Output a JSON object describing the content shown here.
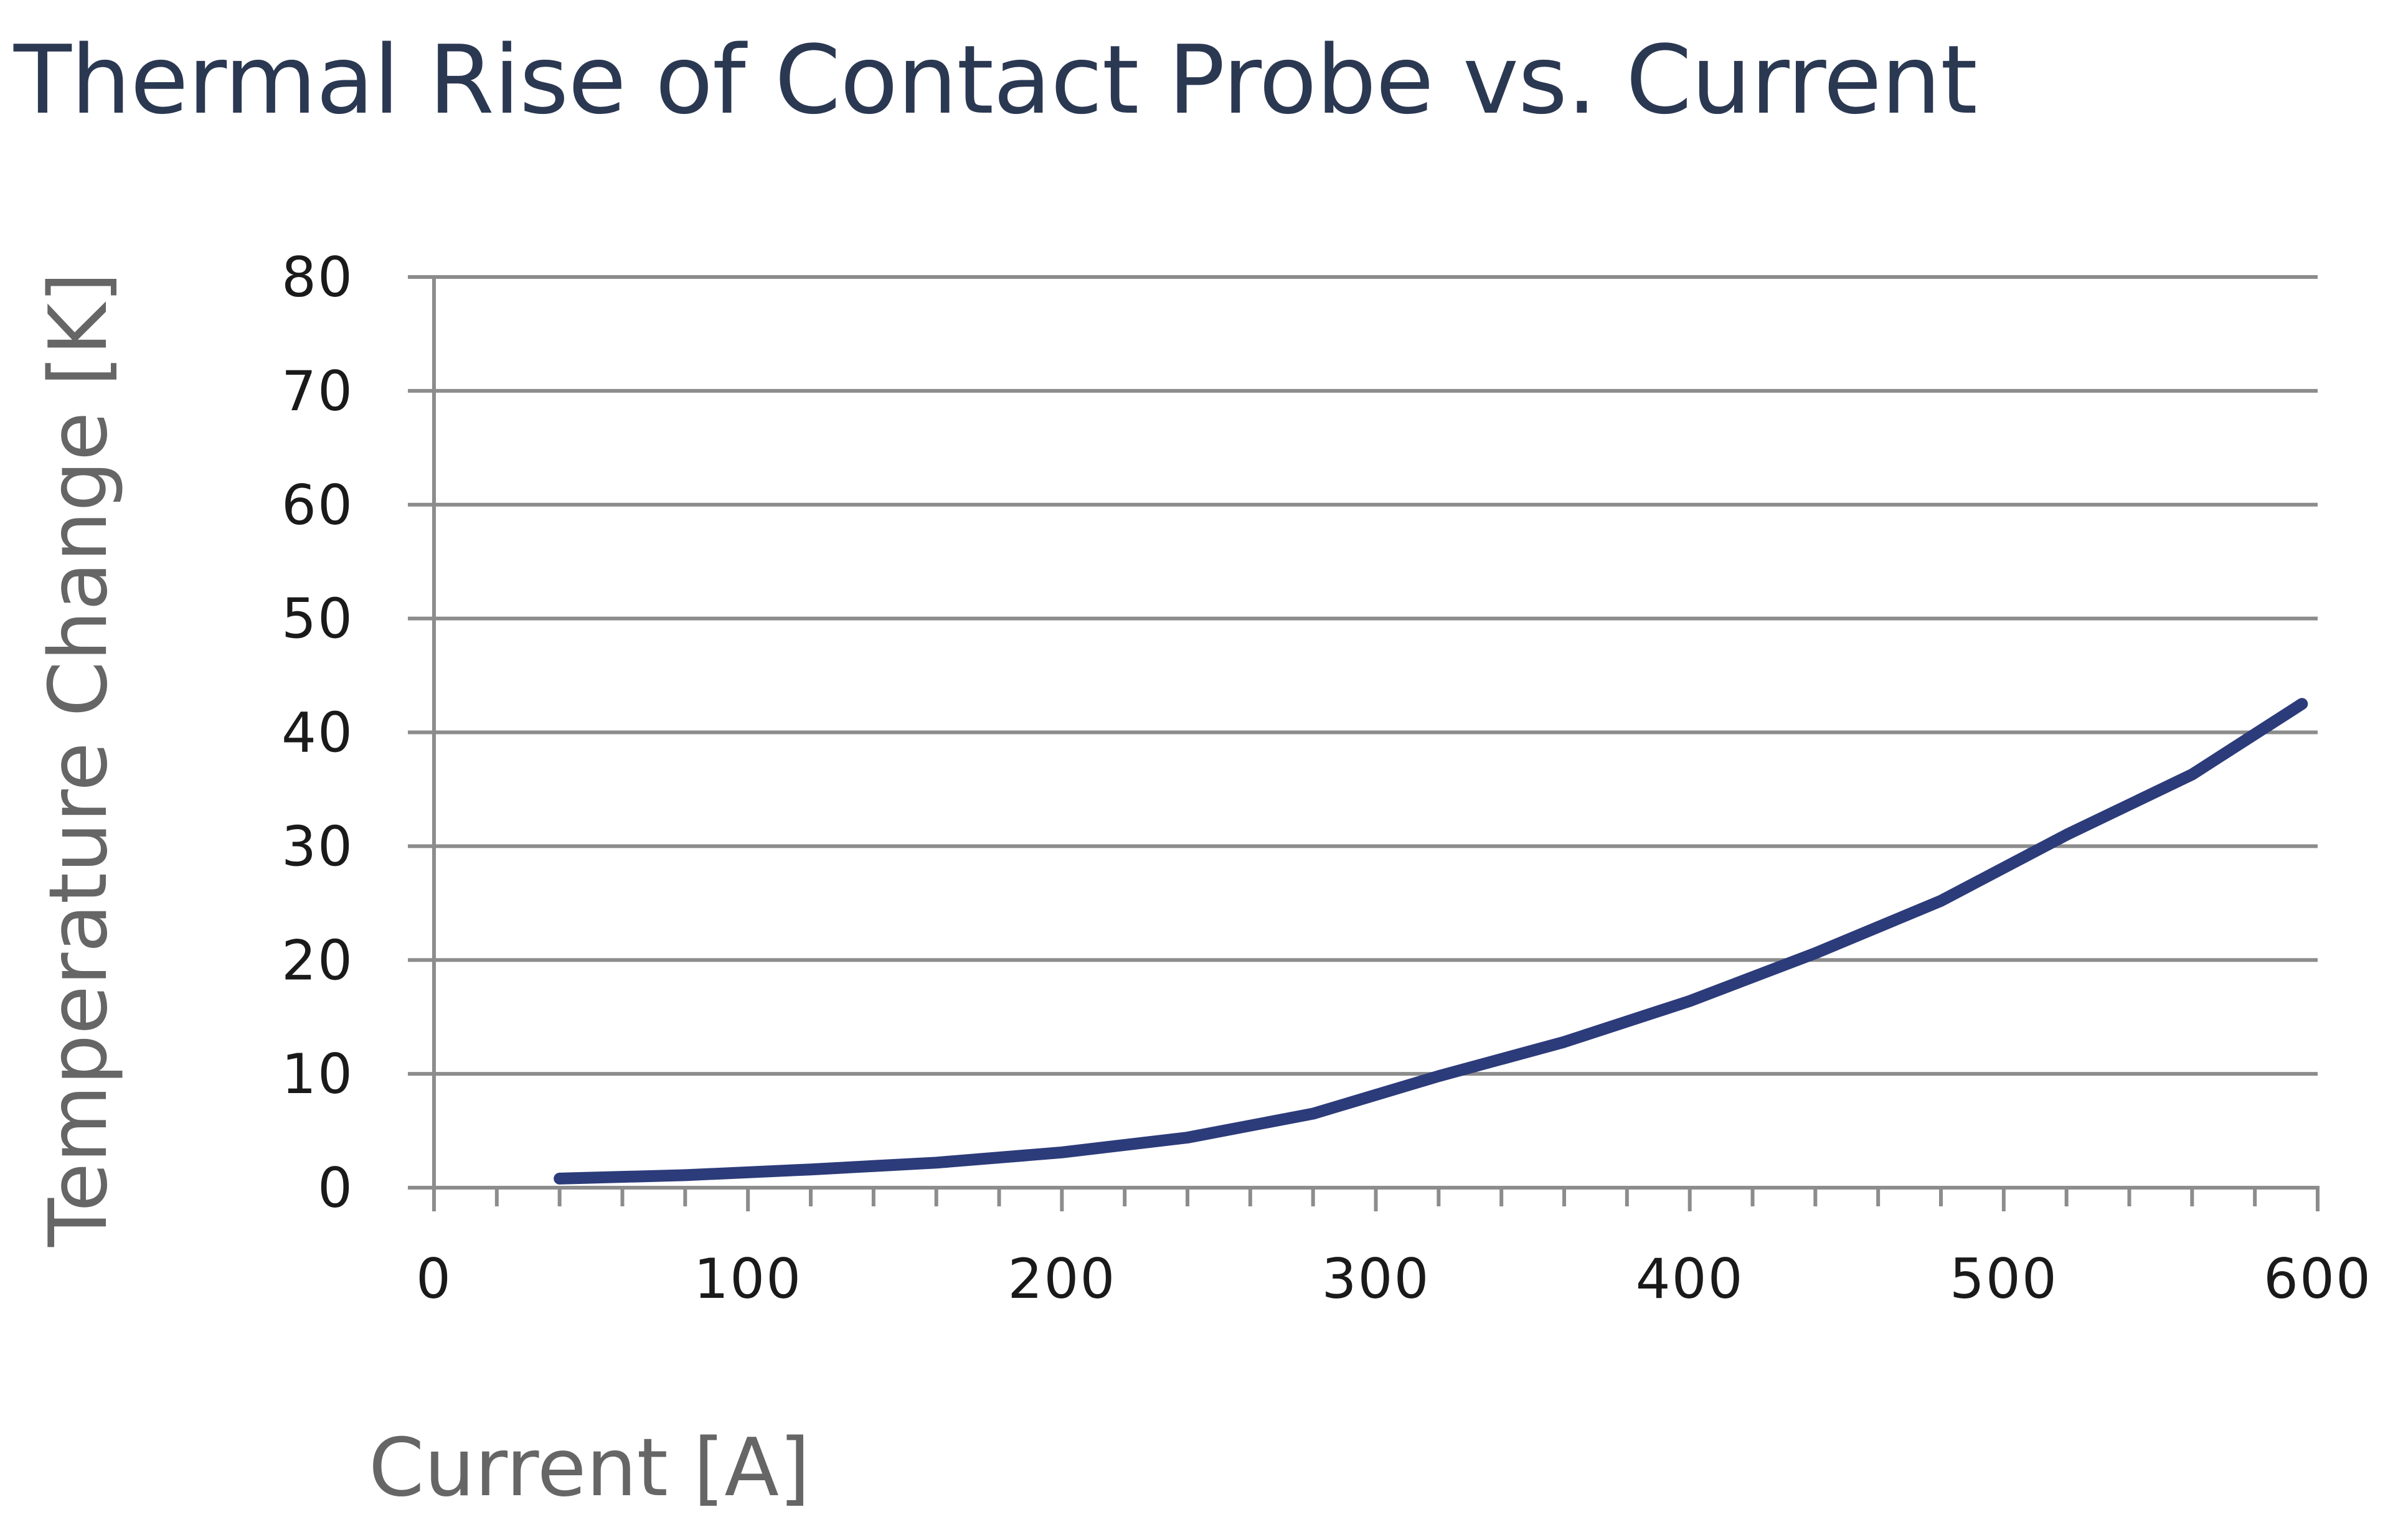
{
  "chart_data": {
    "type": "line",
    "title": "Thermal Rise of Contact Probe vs. Current",
    "xlabel": "Current [A]",
    "ylabel": "Temperature Change [K]",
    "xlim": [
      0,
      600
    ],
    "ylim": [
      0,
      80
    ],
    "x_ticks": [
      0,
      100,
      200,
      300,
      400,
      500,
      600
    ],
    "y_ticks": [
      0,
      10,
      20,
      30,
      40,
      50,
      60,
      70,
      80
    ],
    "x_minor_step": 20,
    "grid": "horizontal",
    "legend": "none",
    "series": [
      {
        "color": "#2c3b7a",
        "x": [
          40,
          80,
          120,
          160,
          200,
          240,
          280,
          320,
          360,
          400,
          440,
          480,
          520,
          560,
          595
        ],
        "y": [
          0.8,
          1.1,
          1.6,
          2.2,
          3.1,
          4.4,
          6.5,
          9.8,
          12.8,
          16.4,
          20.6,
          25.2,
          31.0,
          36.3,
          42.5
        ]
      }
    ]
  }
}
